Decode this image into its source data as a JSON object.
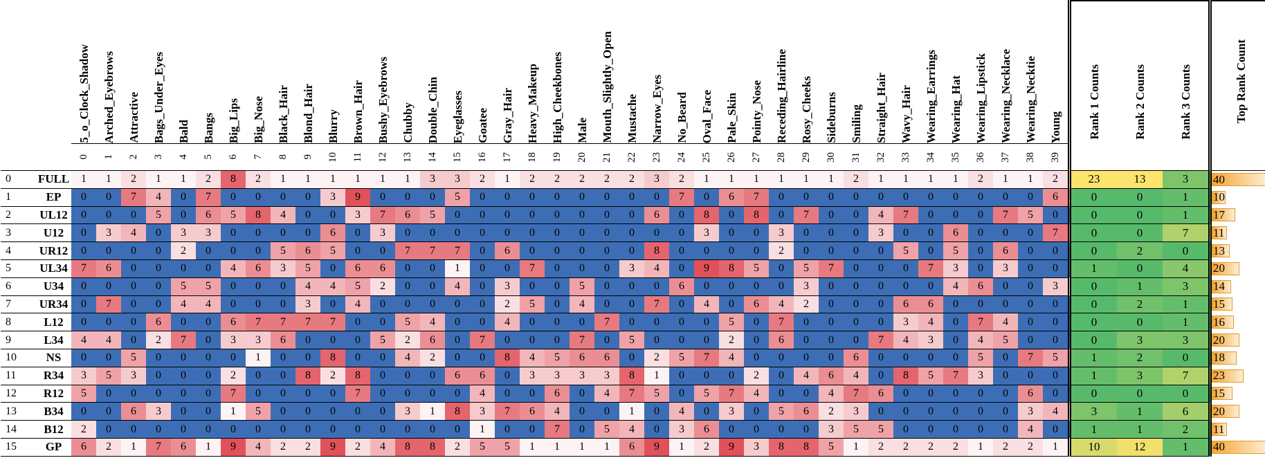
{
  "chart_data": {
    "type": "heatmap",
    "title": "",
    "x_indices": [
      0,
      1,
      2,
      3,
      4,
      5,
      6,
      7,
      8,
      9,
      10,
      11,
      12,
      13,
      14,
      15,
      16,
      17,
      18,
      19,
      20,
      21,
      22,
      23,
      24,
      25,
      26,
      27,
      28,
      29,
      30,
      31,
      32,
      33,
      34,
      35,
      36,
      37,
      38,
      39
    ],
    "x_labels": [
      "5_o_Clock_Shadow",
      "Arched_Eyebrows",
      "Attractive",
      "Bags_Under_Eyes",
      "Bald",
      "Bangs",
      "Big_Lips",
      "Big_Nose",
      "Black_Hair",
      "Blond_Hair",
      "Blurry",
      "Brown_Hair",
      "Bushy_Eyebrows",
      "Chubby",
      "Double_Chin",
      "Eyeglasses",
      "Goatee",
      "Gray_Hair",
      "Heavy_Makeup",
      "High_Cheekbones",
      "Male",
      "Mouth_Slightly_Open",
      "Mustache",
      "Narrow_Eyes",
      "No_Beard",
      "Oval_Face",
      "Pale_Skin",
      "Pointy_Nose",
      "Receding_Hairline",
      "Rosy_Cheeks",
      "Sideburns",
      "Smiling",
      "Straight_Hair",
      "Wavy_Hair",
      "Wearing_Earrings",
      "Wearing_Hat",
      "Wearing_Lipstick",
      "Wearing_Necklace",
      "Wearing_Necktie",
      "Young"
    ],
    "rank_headers": [
      "Rank 1 Counts",
      "Rank 2 Counts",
      "Rank 3 Counts",
      "Top Rank Count"
    ],
    "value_range": [
      0,
      9
    ],
    "rows": [
      {
        "index": 0,
        "label": "FULL",
        "values": [
          1,
          1,
          2,
          1,
          1,
          2,
          8,
          2,
          1,
          1,
          1,
          1,
          1,
          1,
          3,
          3,
          2,
          1,
          2,
          2,
          2,
          2,
          2,
          3,
          2,
          1,
          1,
          1,
          1,
          1,
          1,
          2,
          1,
          1,
          1,
          1,
          2,
          1,
          1,
          2
        ],
        "rank1": 23,
        "rank2": 13,
        "rank3": 3,
        "top_rank": 40
      },
      {
        "index": 1,
        "label": "EP",
        "values": [
          0,
          0,
          7,
          4,
          0,
          7,
          0,
          0,
          0,
          0,
          3,
          9,
          0,
          0,
          0,
          5,
          0,
          0,
          0,
          0,
          0,
          0,
          0,
          0,
          7,
          0,
          6,
          7,
          0,
          0,
          0,
          0,
          0,
          0,
          0,
          0,
          0,
          0,
          0,
          6
        ],
        "rank1": 0,
        "rank2": 0,
        "rank3": 1,
        "top_rank": 10
      },
      {
        "index": 2,
        "label": "UL12",
        "values": [
          0,
          0,
          0,
          5,
          0,
          6,
          5,
          8,
          4,
          0,
          0,
          3,
          7,
          6,
          5,
          0,
          0,
          0,
          0,
          0,
          0,
          0,
          0,
          6,
          0,
          8,
          0,
          8,
          0,
          7,
          0,
          0,
          4,
          7,
          0,
          0,
          0,
          7,
          5,
          0
        ],
        "rank1": 0,
        "rank2": 0,
        "rank3": 1,
        "top_rank": 17
      },
      {
        "index": 3,
        "label": "U12",
        "values": [
          0,
          3,
          4,
          0,
          3,
          3,
          0,
          0,
          0,
          0,
          6,
          0,
          3,
          0,
          0,
          0,
          0,
          0,
          0,
          0,
          0,
          0,
          0,
          0,
          0,
          3,
          0,
          0,
          3,
          0,
          0,
          0,
          3,
          0,
          0,
          6,
          0,
          0,
          0,
          7
        ],
        "rank1": 0,
        "rank2": 0,
        "rank3": 7,
        "top_rank": 11
      },
      {
        "index": 4,
        "label": "UR12",
        "values": [
          0,
          0,
          0,
          0,
          2,
          0,
          0,
          0,
          5,
          6,
          5,
          0,
          0,
          7,
          7,
          7,
          0,
          6,
          0,
          0,
          0,
          0,
          0,
          8,
          0,
          0,
          0,
          0,
          2,
          0,
          0,
          0,
          0,
          5,
          0,
          5,
          0,
          6,
          0,
          0
        ],
        "rank1": 0,
        "rank2": 2,
        "rank3": 0,
        "top_rank": 13
      },
      {
        "index": 5,
        "label": "UL34",
        "values": [
          7,
          6,
          0,
          0,
          0,
          0,
          4,
          6,
          3,
          5,
          0,
          6,
          6,
          0,
          0,
          1,
          0,
          0,
          7,
          0,
          0,
          0,
          3,
          4,
          0,
          9,
          8,
          5,
          0,
          5,
          7,
          0,
          0,
          0,
          7,
          3,
          0,
          3,
          0,
          0
        ],
        "rank1": 1,
        "rank2": 0,
        "rank3": 4,
        "top_rank": 20
      },
      {
        "index": 6,
        "label": "U34",
        "values": [
          0,
          0,
          0,
          0,
          5,
          5,
          0,
          0,
          0,
          4,
          4,
          5,
          2,
          0,
          0,
          4,
          0,
          3,
          0,
          0,
          5,
          0,
          0,
          0,
          6,
          0,
          0,
          0,
          0,
          3,
          0,
          0,
          0,
          0,
          0,
          4,
          6,
          0,
          0,
          3
        ],
        "rank1": 0,
        "rank2": 1,
        "rank3": 3,
        "top_rank": 14
      },
      {
        "index": 7,
        "label": "UR34",
        "values": [
          0,
          7,
          0,
          0,
          4,
          4,
          0,
          0,
          0,
          3,
          0,
          4,
          0,
          0,
          0,
          0,
          0,
          2,
          5,
          0,
          4,
          0,
          0,
          7,
          0,
          4,
          0,
          6,
          4,
          2,
          0,
          0,
          0,
          6,
          6,
          0,
          0,
          0,
          0,
          0
        ],
        "rank1": 0,
        "rank2": 2,
        "rank3": 1,
        "top_rank": 15
      },
      {
        "index": 8,
        "label": "L12",
        "values": [
          0,
          0,
          0,
          6,
          0,
          0,
          6,
          7,
          7,
          7,
          7,
          0,
          0,
          5,
          4,
          0,
          0,
          4,
          0,
          0,
          0,
          7,
          0,
          0,
          0,
          0,
          5,
          0,
          7,
          0,
          0,
          0,
          0,
          3,
          4,
          0,
          7,
          4,
          0,
          0
        ],
        "rank1": 0,
        "rank2": 0,
        "rank3": 1,
        "top_rank": 16
      },
      {
        "index": 9,
        "label": "L34",
        "values": [
          4,
          4,
          0,
          2,
          7,
          0,
          3,
          3,
          6,
          0,
          0,
          0,
          5,
          2,
          6,
          0,
          7,
          0,
          0,
          0,
          7,
          0,
          5,
          0,
          0,
          0,
          2,
          0,
          6,
          0,
          0,
          0,
          7,
          4,
          3,
          0,
          4,
          5,
          0,
          0
        ],
        "rank1": 0,
        "rank2": 3,
        "rank3": 3,
        "top_rank": 20
      },
      {
        "index": 10,
        "label": "NS",
        "values": [
          0,
          0,
          5,
          0,
          0,
          0,
          0,
          1,
          0,
          0,
          8,
          0,
          0,
          4,
          2,
          0,
          0,
          8,
          4,
          5,
          6,
          6,
          0,
          2,
          5,
          7,
          4,
          0,
          0,
          0,
          0,
          6,
          0,
          0,
          0,
          0,
          5,
          0,
          7,
          5
        ],
        "rank1": 1,
        "rank2": 2,
        "rank3": 0,
        "top_rank": 18
      },
      {
        "index": 11,
        "label": "R34",
        "values": [
          3,
          5,
          3,
          0,
          0,
          0,
          2,
          0,
          0,
          8,
          2,
          8,
          0,
          0,
          0,
          6,
          6,
          0,
          3,
          3,
          3,
          3,
          8,
          1,
          0,
          0,
          0,
          2,
          0,
          4,
          6,
          4,
          0,
          8,
          5,
          7,
          3,
          0,
          0,
          0
        ],
        "rank1": 1,
        "rank2": 3,
        "rank3": 7,
        "top_rank": 23
      },
      {
        "index": 12,
        "label": "R12",
        "values": [
          5,
          0,
          0,
          0,
          0,
          0,
          7,
          0,
          0,
          0,
          0,
          7,
          0,
          0,
          0,
          0,
          4,
          0,
          0,
          6,
          0,
          4,
          7,
          5,
          0,
          5,
          7,
          4,
          0,
          0,
          4,
          7,
          6,
          0,
          0,
          0,
          0,
          0,
          6,
          0
        ],
        "rank1": 0,
        "rank2": 0,
        "rank3": 0,
        "top_rank": 15
      },
      {
        "index": 13,
        "label": "B34",
        "values": [
          0,
          0,
          6,
          3,
          0,
          0,
          1,
          5,
          0,
          0,
          0,
          0,
          0,
          3,
          1,
          8,
          3,
          7,
          6,
          4,
          0,
          0,
          1,
          0,
          4,
          0,
          3,
          0,
          5,
          6,
          2,
          3,
          0,
          0,
          0,
          0,
          0,
          0,
          3,
          4
        ],
        "rank1": 3,
        "rank2": 1,
        "rank3": 6,
        "top_rank": 20
      },
      {
        "index": 14,
        "label": "B12",
        "values": [
          2,
          0,
          0,
          0,
          0,
          0,
          0,
          0,
          0,
          0,
          0,
          0,
          0,
          0,
          0,
          0,
          1,
          0,
          0,
          7,
          0,
          5,
          4,
          0,
          3,
          6,
          0,
          0,
          0,
          0,
          3,
          5,
          5,
          0,
          0,
          0,
          0,
          0,
          4,
          0
        ],
        "rank1": 1,
        "rank2": 1,
        "rank3": 2,
        "top_rank": 11
      },
      {
        "index": 15,
        "label": "GP",
        "values": [
          6,
          2,
          1,
          7,
          6,
          1,
          9,
          4,
          2,
          2,
          9,
          2,
          4,
          8,
          8,
          2,
          5,
          5,
          1,
          1,
          1,
          1,
          6,
          9,
          1,
          2,
          9,
          3,
          8,
          8,
          5,
          1,
          2,
          2,
          2,
          2,
          1,
          2,
          2,
          1
        ],
        "rank1": 10,
        "rank2": 12,
        "rank3": 1,
        "top_rank": 40
      }
    ],
    "colors": {
      "heat_zero_blue": "#3d6eb5",
      "heat_low_pink": "#fdf3f4",
      "heat_high_red": "#e0515a",
      "rank_green": "#57ba6b",
      "rank_yellow": "#fde46d",
      "bar_orange_left": "#f5a636",
      "bar_orange_right": "#fdeed2",
      "bar_border": "#dd9a33",
      "grid_line": "#000000"
    },
    "scales": {
      "heat_min": 1,
      "heat_max": 9,
      "rank_color_max": 13,
      "top_rank_bar_max": 40
    },
    "legend_position": "none",
    "grid": true
  }
}
